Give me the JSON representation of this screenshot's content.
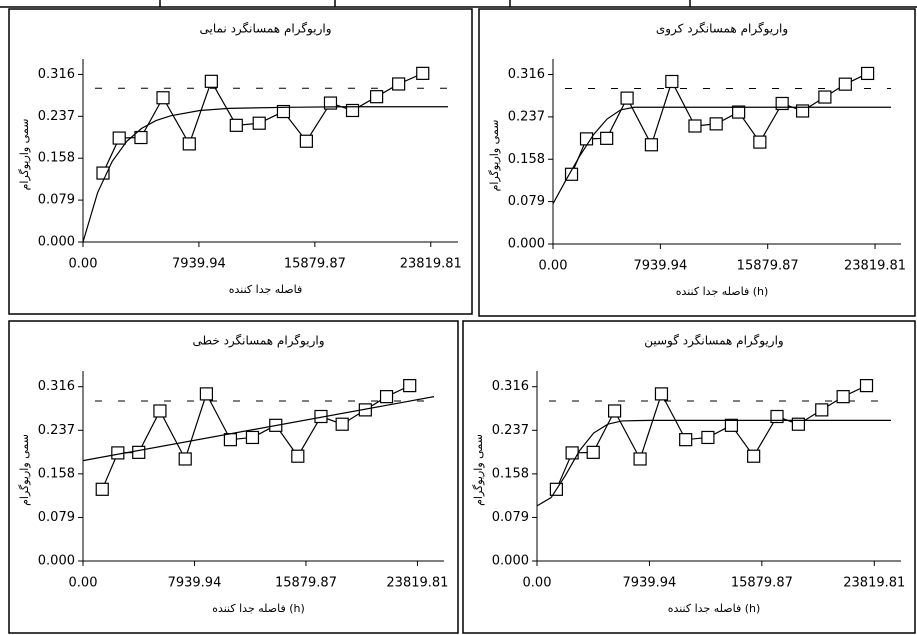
{
  "chart_data": [
    {
      "type": "variogram",
      "title": "واریوگرام همسانگرد نمایی",
      "xlabel": "فاصله جدا کننده",
      "ylabel": "سمی واریوگرام",
      "xlim": [
        0,
        25000
      ],
      "ylim": [
        0,
        0.33
      ],
      "xticks": [
        {
          "value": 0,
          "label": "0.00"
        },
        7939.94,
        15879.87,
        23819.81
      ],
      "yticks": [
        {
          "value": 0,
          "label": "0.000"
        },
        0.079,
        0.158,
        0.237,
        0.316
      ],
      "sill_line": 0.29,
      "series": [
        {
          "color": "#000000",
          "marker": "square",
          "x": [
            1370,
            2480,
            3970,
            5480,
            7280,
            8790,
            10500,
            12070,
            13730,
            15300,
            16950,
            18460,
            20110,
            21620,
            23270
          ],
          "values": [
            0.13,
            0.196,
            0.197,
            0.272,
            0.185,
            0.303,
            0.22,
            0.224,
            0.246,
            0.19,
            0.262,
            0.248,
            0.274,
            0.298,
            0.318
          ]
        },
        {
          "color": "#000000",
          "marker": "none",
          "x": [
            0,
            1000,
            2000,
            3000,
            4000,
            5000,
            6000,
            8000,
            10000,
            14000,
            18000,
            25000
          ],
          "values": [
            0,
            0.093,
            0.152,
            0.19,
            0.214,
            0.229,
            0.238,
            0.248,
            0.252,
            0.254,
            0.255,
            0.255
          ]
        }
      ]
    },
    {
      "type": "variogram",
      "title": "واریوگرام همسانگرد کروی",
      "xlabel": "فاصله جدا کننده (h)",
      "ylabel": "سمی واریوگرام",
      "xlim": [
        0,
        25000
      ],
      "ylim": [
        0,
        0.33
      ],
      "xticks": [
        {
          "value": 0,
          "label": "0.00"
        },
        7939.94,
        15879.87,
        23819.81
      ],
      "yticks": [
        {
          "value": 0,
          "label": "0.000"
        },
        0.079,
        0.158,
        0.237,
        0.316
      ],
      "sill_line": 0.29,
      "series": [
        {
          "color": "#000000",
          "marker": "square",
          "x": [
            1370,
            2480,
            3970,
            5480,
            7280,
            8790,
            10500,
            12070,
            13730,
            15300,
            16950,
            18460,
            20110,
            21620,
            23270
          ],
          "values": [
            0.13,
            0.196,
            0.197,
            0.272,
            0.185,
            0.303,
            0.22,
            0.224,
            0.246,
            0.19,
            0.262,
            0.248,
            0.274,
            0.298,
            0.318
          ]
        },
        {
          "color": "#000000",
          "marker": "none",
          "x": [
            0,
            1000,
            2000,
            3000,
            4000,
            5000,
            6000,
            25000
          ],
          "values": [
            0.075,
            0.121,
            0.165,
            0.204,
            0.233,
            0.25,
            0.255,
            0.255
          ]
        }
      ]
    },
    {
      "type": "variogram",
      "title": "واریوگرام همسانگرد خطی",
      "xlabel": "فاصله جدا کننده (h)",
      "ylabel": "سمی واریوگرام",
      "xlim": [
        0,
        25000
      ],
      "ylim": [
        0,
        0.33
      ],
      "xticks": [
        {
          "value": 0,
          "label": "0.00"
        },
        7939.94,
        15879.87,
        23819.81
      ],
      "yticks": [
        {
          "value": 0,
          "label": "0.000"
        },
        0.079,
        0.158,
        0.237,
        0.316
      ],
      "sill_line": 0.29,
      "series": [
        {
          "color": "#000000",
          "marker": "square",
          "x": [
            1370,
            2480,
            3970,
            5480,
            7280,
            8790,
            10500,
            12070,
            13730,
            15300,
            16950,
            18460,
            20110,
            21620,
            23270
          ],
          "values": [
            0.13,
            0.196,
            0.197,
            0.272,
            0.185,
            0.303,
            0.22,
            0.224,
            0.246,
            0.19,
            0.262,
            0.248,
            0.274,
            0.298,
            0.318
          ]
        },
        {
          "color": "#000000",
          "marker": "none",
          "x": [
            0,
            25000
          ],
          "values": [
            0.182,
            0.298
          ]
        }
      ]
    },
    {
      "type": "variogram",
      "title": "واریوگرام همسانگرد گوسین",
      "xlabel": "فاصله جدا کننده (h)",
      "ylabel": "سمی واریوگرام",
      "xlim": [
        0,
        25000
      ],
      "ylim": [
        0,
        0.33
      ],
      "xticks": [
        {
          "value": 0,
          "label": "0.00"
        },
        7939.94,
        15879.87,
        23819.81
      ],
      "yticks": [
        {
          "value": 0,
          "label": "0.000"
        },
        0.079,
        0.158,
        0.237,
        0.316
      ],
      "sill_line": 0.29,
      "series": [
        {
          "color": "#000000",
          "marker": "square",
          "x": [
            1370,
            2480,
            3970,
            5480,
            7280,
            8790,
            10500,
            12070,
            13730,
            15300,
            16950,
            18460,
            20110,
            21620,
            23270
          ],
          "values": [
            0.13,
            0.196,
            0.197,
            0.272,
            0.185,
            0.303,
            0.22,
            0.224,
            0.246,
            0.19,
            0.262,
            0.248,
            0.274,
            0.298,
            0.318
          ]
        },
        {
          "color": "#000000",
          "marker": "none",
          "x": [
            0,
            1000,
            2000,
            3000,
            4000,
            5000,
            6000,
            8000,
            25000
          ],
          "values": [
            0.1,
            0.115,
            0.155,
            0.2,
            0.232,
            0.248,
            0.254,
            0.255,
            0.255
          ]
        }
      ]
    }
  ]
}
